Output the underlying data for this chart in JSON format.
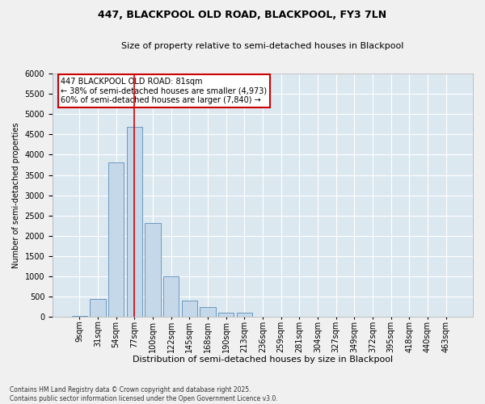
{
  "title1": "447, BLACKPOOL OLD ROAD, BLACKPOOL, FY3 7LN",
  "title2": "Size of property relative to semi-detached houses in Blackpool",
  "xlabel": "Distribution of semi-detached houses by size in Blackpool",
  "ylabel": "Number of semi-detached properties",
  "categories": [
    "9sqm",
    "31sqm",
    "54sqm",
    "77sqm",
    "100sqm",
    "122sqm",
    "145sqm",
    "168sqm",
    "190sqm",
    "213sqm",
    "236sqm",
    "259sqm",
    "281sqm",
    "304sqm",
    "327sqm",
    "349sqm",
    "372sqm",
    "395sqm",
    "418sqm",
    "440sqm",
    "463sqm"
  ],
  "values": [
    30,
    440,
    3820,
    4680,
    2310,
    1000,
    410,
    240,
    110,
    100,
    0,
    0,
    0,
    0,
    0,
    0,
    0,
    0,
    0,
    0,
    0
  ],
  "bar_color": "#c5d8ea",
  "bar_edge_color": "#5b8db8",
  "vline_color": "#cc0000",
  "vline_x": 3.0,
  "property_label": "447 BLACKPOOL OLD ROAD: 81sqm",
  "annotation_smaller": "← 38% of semi-detached houses are smaller (4,973)",
  "annotation_larger": "60% of semi-detached houses are larger (7,840) →",
  "ylim": [
    0,
    6000
  ],
  "yticks": [
    0,
    500,
    1000,
    1500,
    2000,
    2500,
    3000,
    3500,
    4000,
    4500,
    5000,
    5500,
    6000
  ],
  "bg_color": "#dce8f0",
  "grid_color": "#ffffff",
  "fig_bg": "#f0f0f0",
  "footer": "Contains HM Land Registry data © Crown copyright and database right 2025.\nContains public sector information licensed under the Open Government Licence v3.0.",
  "title1_fontsize": 9,
  "title2_fontsize": 8,
  "ylabel_fontsize": 7,
  "xlabel_fontsize": 8,
  "tick_fontsize": 7,
  "xtick_fontsize": 7,
  "annot_fontsize": 7
}
